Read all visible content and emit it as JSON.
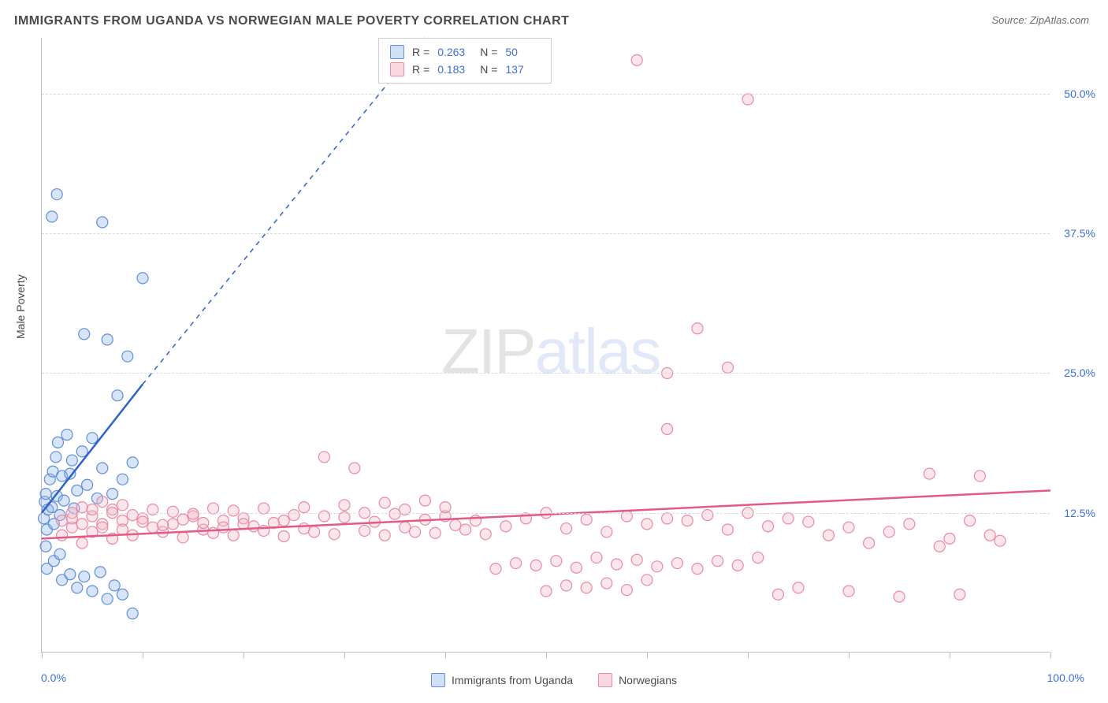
{
  "title": "IMMIGRANTS FROM UGANDA VS NORWEGIAN MALE POVERTY CORRELATION CHART",
  "source_label": "Source: ZipAtlas.com",
  "y_axis_label": "Male Poverty",
  "watermark": {
    "part1": "ZIP",
    "part2": "atlas"
  },
  "chart": {
    "type": "scatter",
    "xlim": [
      0,
      100
    ],
    "ylim": [
      0,
      55
    ],
    "x_tick_positions": [
      0,
      10,
      20,
      30,
      40,
      50,
      60,
      70,
      80,
      90,
      100
    ],
    "y_gridlines": [
      12.5,
      25.0,
      37.5,
      50.0
    ],
    "y_tick_labels": [
      "12.5%",
      "25.0%",
      "37.5%",
      "50.0%"
    ],
    "x_min_label": "0.0%",
    "x_max_label": "100.0%",
    "background_color": "#ffffff",
    "grid_color": "#d9d9d9",
    "axis_color": "#bfbfbf",
    "marker_radius": 7,
    "marker_fill_opacity": 0.35,
    "marker_stroke_width": 1.2,
    "series": [
      {
        "name": "Immigrants from Uganda",
        "color": "#8fb3e8",
        "stroke": "#5f8fd6",
        "trend_color": "#2f63c7",
        "trend_solid": {
          "x1": 0,
          "y1": 12.5,
          "x2": 10,
          "y2": 24.0
        },
        "trend_dashed": {
          "x1": 10,
          "y1": 24.0,
          "x2": 38,
          "y2": 55.0
        },
        "stats": {
          "R": "0.263",
          "N": "50"
        },
        "points": [
          [
            0.2,
            12.0
          ],
          [
            0.3,
            13.5
          ],
          [
            0.5,
            11.0
          ],
          [
            0.4,
            14.2
          ],
          [
            0.6,
            12.8
          ],
          [
            0.8,
            15.5
          ],
          [
            1.0,
            13.0
          ],
          [
            1.1,
            16.2
          ],
          [
            1.2,
            11.5
          ],
          [
            1.4,
            17.5
          ],
          [
            1.5,
            14.0
          ],
          [
            1.6,
            18.8
          ],
          [
            1.8,
            12.3
          ],
          [
            2.0,
            15.8
          ],
          [
            2.2,
            13.6
          ],
          [
            2.5,
            19.5
          ],
          [
            2.8,
            16.0
          ],
          [
            3.0,
            17.2
          ],
          [
            3.2,
            12.9
          ],
          [
            3.5,
            14.5
          ],
          [
            4.0,
            18.0
          ],
          [
            4.2,
            28.5
          ],
          [
            4.5,
            15.0
          ],
          [
            5.0,
            19.2
          ],
          [
            5.5,
            13.8
          ],
          [
            6.0,
            16.5
          ],
          [
            6.5,
            28.0
          ],
          [
            7.0,
            14.2
          ],
          [
            7.5,
            23.0
          ],
          [
            8.0,
            15.5
          ],
          [
            8.5,
            26.5
          ],
          [
            9.0,
            17.0
          ],
          [
            1.0,
            39.0
          ],
          [
            1.5,
            41.0
          ],
          [
            6.0,
            38.5
          ],
          [
            10.0,
            33.5
          ],
          [
            0.5,
            7.5
          ],
          [
            1.2,
            8.2
          ],
          [
            2.0,
            6.5
          ],
          [
            2.8,
            7.0
          ],
          [
            3.5,
            5.8
          ],
          [
            4.2,
            6.8
          ],
          [
            5.0,
            5.5
          ],
          [
            5.8,
            7.2
          ],
          [
            6.5,
            4.8
          ],
          [
            7.2,
            6.0
          ],
          [
            8.0,
            5.2
          ],
          [
            9.0,
            3.5
          ],
          [
            0.4,
            9.5
          ],
          [
            1.8,
            8.8
          ]
        ]
      },
      {
        "name": "Norwegians",
        "color": "#f4b6c6",
        "stroke": "#e88aa4",
        "trend_color": "#e35a85",
        "trend_solid": {
          "x1": 0,
          "y1": 10.2,
          "x2": 100,
          "y2": 14.5
        },
        "trend_dashed": null,
        "stats": {
          "R": "0.183",
          "N": "137"
        },
        "points": [
          [
            2,
            10.5
          ],
          [
            3,
            11.2
          ],
          [
            4,
            9.8
          ],
          [
            5,
            10.8
          ],
          [
            6,
            11.5
          ],
          [
            7,
            10.2
          ],
          [
            8,
            11.8
          ],
          [
            9,
            10.5
          ],
          [
            10,
            12.0
          ],
          [
            11,
            11.2
          ],
          [
            12,
            10.8
          ],
          [
            13,
            11.5
          ],
          [
            14,
            10.3
          ],
          [
            15,
            12.2
          ],
          [
            16,
            11.0
          ],
          [
            17,
            10.7
          ],
          [
            18,
            11.8
          ],
          [
            19,
            10.5
          ],
          [
            20,
            12.0
          ],
          [
            21,
            11.3
          ],
          [
            22,
            10.9
          ],
          [
            23,
            11.6
          ],
          [
            24,
            10.4
          ],
          [
            25,
            12.3
          ],
          [
            26,
            11.1
          ],
          [
            27,
            10.8
          ],
          [
            28,
            17.5
          ],
          [
            29,
            10.6
          ],
          [
            30,
            12.1
          ],
          [
            31,
            16.5
          ],
          [
            32,
            10.9
          ],
          [
            33,
            11.7
          ],
          [
            34,
            10.5
          ],
          [
            35,
            12.4
          ],
          [
            36,
            11.2
          ],
          [
            37,
            10.8
          ],
          [
            38,
            11.9
          ],
          [
            39,
            10.7
          ],
          [
            40,
            12.2
          ],
          [
            41,
            11.4
          ],
          [
            42,
            11.0
          ],
          [
            43,
            11.8
          ],
          [
            44,
            10.6
          ],
          [
            45,
            7.5
          ],
          [
            46,
            11.3
          ],
          [
            47,
            8.0
          ],
          [
            48,
            12.0
          ],
          [
            49,
            7.8
          ],
          [
            50,
            12.5
          ],
          [
            51,
            8.2
          ],
          [
            52,
            11.1
          ],
          [
            53,
            7.6
          ],
          [
            54,
            11.9
          ],
          [
            55,
            8.5
          ],
          [
            56,
            10.8
          ],
          [
            57,
            7.9
          ],
          [
            58,
            12.2
          ],
          [
            59,
            8.3
          ],
          [
            60,
            11.5
          ],
          [
            61,
            7.7
          ],
          [
            62,
            12.0
          ],
          [
            50,
            5.5
          ],
          [
            52,
            6.0
          ],
          [
            54,
            5.8
          ],
          [
            56,
            6.2
          ],
          [
            58,
            5.6
          ],
          [
            60,
            6.5
          ],
          [
            62,
            25.0
          ],
          [
            63,
            8.0
          ],
          [
            64,
            11.8
          ],
          [
            65,
            7.5
          ],
          [
            66,
            12.3
          ],
          [
            67,
            8.2
          ],
          [
            68,
            11.0
          ],
          [
            69,
            7.8
          ],
          [
            70,
            12.5
          ],
          [
            71,
            8.5
          ],
          [
            72,
            11.3
          ],
          [
            73,
            5.2
          ],
          [
            74,
            12.0
          ],
          [
            75,
            5.8
          ],
          [
            76,
            11.7
          ],
          [
            65,
            29.0
          ],
          [
            59,
            53.0
          ],
          [
            70,
            49.5
          ],
          [
            62,
            20.0
          ],
          [
            68,
            25.5
          ],
          [
            78,
            10.5
          ],
          [
            80,
            11.2
          ],
          [
            82,
            9.8
          ],
          [
            84,
            10.8
          ],
          [
            86,
            11.5
          ],
          [
            88,
            16.0
          ],
          [
            90,
            10.2
          ],
          [
            92,
            11.8
          ],
          [
            94,
            10.5
          ],
          [
            80,
            5.5
          ],
          [
            85,
            5.0
          ],
          [
            89,
            9.5
          ],
          [
            91,
            5.2
          ],
          [
            93,
            15.8
          ],
          [
            95,
            10.0
          ],
          [
            3,
            12.5
          ],
          [
            4,
            13.0
          ],
          [
            5,
            12.2
          ],
          [
            6,
            13.5
          ],
          [
            7,
            12.8
          ],
          [
            8,
            13.2
          ],
          [
            2,
            11.8
          ],
          [
            3,
            12.0
          ],
          [
            4,
            11.5
          ],
          [
            5,
            12.8
          ],
          [
            6,
            11.2
          ],
          [
            7,
            12.5
          ],
          [
            8,
            11.0
          ],
          [
            9,
            12.3
          ],
          [
            10,
            11.7
          ],
          [
            11,
            12.8
          ],
          [
            12,
            11.4
          ],
          [
            13,
            12.6
          ],
          [
            14,
            11.9
          ],
          [
            15,
            12.4
          ],
          [
            16,
            11.6
          ],
          [
            17,
            12.9
          ],
          [
            18,
            11.2
          ],
          [
            19,
            12.7
          ],
          [
            20,
            11.5
          ],
          [
            22,
            12.9
          ],
          [
            24,
            11.8
          ],
          [
            26,
            13.0
          ],
          [
            28,
            12.2
          ],
          [
            30,
            13.2
          ],
          [
            32,
            12.5
          ],
          [
            34,
            13.4
          ],
          [
            36,
            12.8
          ],
          [
            38,
            13.6
          ],
          [
            40,
            13.0
          ]
        ]
      }
    ]
  },
  "legend": {
    "items": [
      {
        "label": "Immigrants from Uganda",
        "fill": "#cfe0f7",
        "border": "#5f8fd6"
      },
      {
        "label": "Norwegians",
        "fill": "#fad8e2",
        "border": "#e88aa4"
      }
    ]
  },
  "stats_box": {
    "rows": [
      {
        "swatch_fill": "#cfe0f7",
        "swatch_border": "#5f8fd6",
        "r_label": "R =",
        "r_val": "0.263",
        "n_label": "N =",
        "n_val": "50"
      },
      {
        "swatch_fill": "#fad8e2",
        "swatch_border": "#e88aa4",
        "r_label": "R =",
        "r_val": "0.183",
        "n_label": "N =",
        "n_val": "137"
      }
    ]
  }
}
